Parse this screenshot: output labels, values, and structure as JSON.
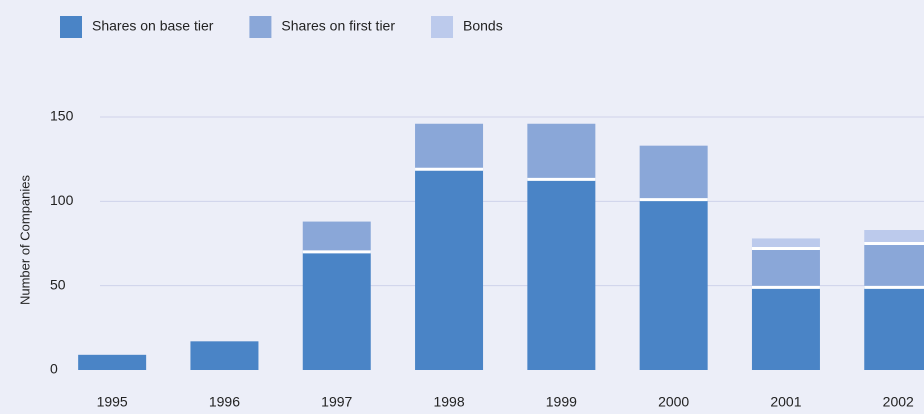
{
  "chart_data": {
    "type": "stacked_bar",
    "y_label": "Number of Companies",
    "categories": [
      "1995",
      "1996",
      "1997",
      "1998",
      "1999",
      "2000",
      "2001",
      "2002"
    ],
    "series": [
      {
        "name": "Shares on base tier",
        "color": "#4a84c6",
        "values": [
          9,
          17,
          70,
          119,
          113,
          101,
          49,
          49
        ]
      },
      {
        "name": "Shares on first tier",
        "color": "#8aa7d8",
        "values": [
          0,
          0,
          18,
          27,
          33,
          32,
          23,
          26
        ]
      },
      {
        "name": "Bonds",
        "color": "#bccaec",
        "values": [
          0,
          0,
          0,
          0,
          0,
          0,
          6,
          8
        ]
      }
    ],
    "ylim": [
      0,
      150
    ],
    "yticks": [
      0,
      50,
      100,
      150
    ],
    "grid": true
  }
}
